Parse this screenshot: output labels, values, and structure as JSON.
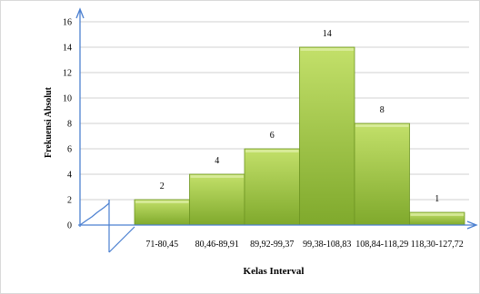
{
  "chart_data": {
    "type": "bar",
    "title": "",
    "xlabel": "Kelas Interval",
    "ylabel": "Frekuensi Absolut",
    "categories": [
      "71-80,45",
      "80,46-89,91",
      "89,92-99,37",
      "99,38-108,83",
      "108,84-118,29",
      "118,30-127,72"
    ],
    "values": [
      2,
      4,
      6,
      14,
      8,
      1
    ],
    "data_labels": [
      "2",
      "4",
      "6",
      "14",
      "8",
      "1"
    ],
    "yticks": [
      "0",
      "2",
      "4",
      "6",
      "8",
      "10",
      "12",
      "14",
      "16"
    ],
    "ylim": [
      0,
      16
    ],
    "grid": true,
    "legend": "none",
    "axis_break": true,
    "colors": {
      "bar_top": "#c3e06a",
      "bar_bottom": "#7fa92c",
      "bar_edge": "#6f9624",
      "grid": "#d0d0d0",
      "axis": "#4a7fd0"
    }
  }
}
